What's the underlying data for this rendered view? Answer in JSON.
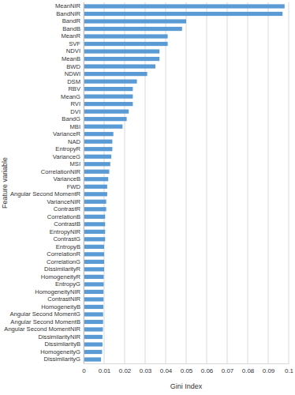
{
  "chart_data": {
    "type": "bar",
    "orientation": "horizontal",
    "x_label": "Gini Index",
    "y_label": "Feature variable",
    "categories": [
      "MeanNIR",
      "BandNIR",
      "BandR",
      "BandB",
      "MeanR",
      "SVF",
      "NDVI",
      "MeanB",
      "BWD",
      "NDWI",
      "DSM",
      "RBV",
      "MeanG",
      "RVI",
      "DVI",
      "BandG",
      "MBI",
      "VarianceR",
      "NAD",
      "EntropyR",
      "VarianceG",
      "MSI",
      "CorrelationNIR",
      "VarianceB",
      "FWD",
      "Angular Second MomentR",
      "VarianceNIR",
      "ContrastR",
      "CorrelationB",
      "ContrastB",
      "EntropyNIR",
      "ContrastG",
      "EntropyB",
      "CorrelationR",
      "CorrelationG",
      "DissimilarityR",
      "HomogeneityR",
      "EntropyG",
      "HomogeneityNIR",
      "ContrastNIR",
      "HomogeneityB",
      "Angular Second MomentG",
      "Angular Second MomentB",
      "Angular Second MomentNIR",
      "DissimilarityNIR",
      "DissimilarityB",
      "HomogeneityG",
      "DissimilarityG"
    ],
    "values": [
      0.098,
      0.097,
      0.05,
      0.048,
      0.041,
      0.041,
      0.037,
      0.037,
      0.035,
      0.031,
      0.026,
      0.024,
      0.024,
      0.024,
      0.022,
      0.021,
      0.019,
      0.0145,
      0.014,
      0.014,
      0.0135,
      0.013,
      0.0125,
      0.012,
      0.0115,
      0.0115,
      0.011,
      0.011,
      0.0105,
      0.0105,
      0.0105,
      0.0105,
      0.01,
      0.01,
      0.01,
      0.01,
      0.0098,
      0.0098,
      0.0097,
      0.0097,
      0.0096,
      0.0095,
      0.0095,
      0.0094,
      0.0092,
      0.0092,
      0.009,
      0.0085
    ],
    "color": "#5b9bd5",
    "xlim": [
      0,
      0.1
    ],
    "xticks": [
      0,
      0.01,
      0.02,
      0.03,
      0.04,
      0.05,
      0.06,
      0.07,
      0.08,
      0.09,
      0.1
    ],
    "grid": true
  }
}
